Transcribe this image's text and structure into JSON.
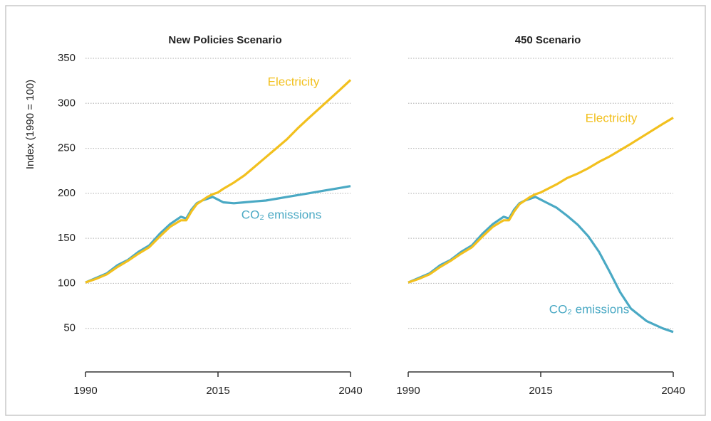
{
  "chart_data": [
    {
      "type": "line",
      "title": "New Policies Scenario",
      "y_label": "Index (1990 = 100)",
      "x": [
        1990,
        1992,
        1994,
        1996,
        1998,
        2000,
        2002,
        2004,
        2006,
        2008,
        2009,
        2010,
        2011,
        2012,
        2013,
        2014,
        2015,
        2016,
        2018,
        2020,
        2022,
        2024,
        2026,
        2028,
        2030,
        2032,
        2035,
        2038,
        2040
      ],
      "series": [
        {
          "name": "Electricity",
          "color": "#f2c01e",
          "values": [
            101,
            105,
            110,
            118,
            125,
            133,
            140,
            152,
            163,
            170,
            170,
            180,
            188,
            192,
            196,
            199,
            201,
            205,
            212,
            220,
            230,
            240,
            250,
            260,
            272,
            283,
            299,
            315,
            326
          ]
        },
        {
          "name": "CO₂ emissions",
          "color": "#4aa9c4",
          "values": [
            101,
            106,
            111,
            120,
            126,
            135,
            142,
            155,
            166,
            174,
            172,
            182,
            189,
            192,
            194,
            196,
            193,
            190,
            189,
            190,
            191,
            192,
            194,
            196,
            198,
            200,
            203,
            206,
            208
          ]
        }
      ],
      "xlim": [
        1990,
        2040
      ],
      "xticks": [
        1990,
        2015,
        2040
      ],
      "ylim": [
        0,
        350
      ],
      "yticks": [
        50,
        100,
        150,
        200,
        250,
        300,
        350
      ],
      "grid": true
    },
    {
      "type": "line",
      "title": "450 Scenario",
      "x": [
        1990,
        1992,
        1994,
        1996,
        1998,
        2000,
        2002,
        2004,
        2006,
        2008,
        2009,
        2010,
        2011,
        2012,
        2013,
        2014,
        2015,
        2016,
        2018,
        2020,
        2022,
        2024,
        2026,
        2028,
        2030,
        2032,
        2035,
        2038,
        2040
      ],
      "series": [
        {
          "name": "Electricity",
          "color": "#f2c01e",
          "values": [
            101,
            105,
            110,
            118,
            125,
            133,
            140,
            152,
            163,
            170,
            170,
            180,
            188,
            192,
            196,
            199,
            201,
            204,
            210,
            217,
            222,
            228,
            235,
            241,
            248,
            255,
            266,
            277,
            284
          ]
        },
        {
          "name": "CO₂ emissions",
          "color": "#4aa9c4",
          "values": [
            101,
            106,
            111,
            120,
            126,
            135,
            142,
            155,
            166,
            174,
            172,
            182,
            189,
            192,
            194,
            196,
            193,
            190,
            184,
            175,
            165,
            152,
            135,
            113,
            90,
            72,
            58,
            50,
            46
          ]
        }
      ],
      "xlim": [
        1990,
        2040
      ],
      "xticks": [
        1990,
        2015,
        2040
      ],
      "ylim": [
        0,
        350
      ],
      "yticks": [
        50,
        100,
        150,
        200,
        250,
        300,
        350
      ],
      "grid": true
    }
  ]
}
